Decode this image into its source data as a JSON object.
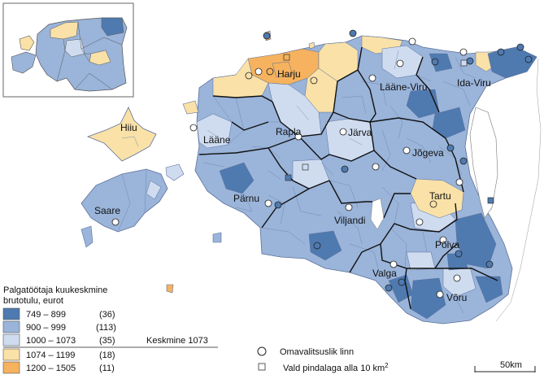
{
  "classes": [
    {
      "range": "749 – 899",
      "count": "(36)",
      "color": "#4f7ab0"
    },
    {
      "range": "900 – 999",
      "count": "(113)",
      "color": "#9ab4da"
    },
    {
      "range": "1000 – 1073",
      "count": "(35)",
      "color": "#cfdcf0"
    },
    {
      "range": "1074 – 1199",
      "count": "(18)",
      "color": "#f9e1a8"
    },
    {
      "range": "1200 – 1505",
      "count": "(11)",
      "color": "#f6b25e"
    }
  ],
  "legend": {
    "title_line1": "Palgatöötaja kuukeskmine",
    "title_line2": "brutotulu, eurot",
    "average_label": "Keskmine 1073"
  },
  "symbols": {
    "city": "Omavalitsuslik linn",
    "small_parish_prefix": "Vald pindalaga alla 10 km",
    "small_parish_sup": "2"
  },
  "scale_bar": "50km",
  "counties": [
    {
      "name": "Harju"
    },
    {
      "name": "Lääne-Viru"
    },
    {
      "name": "Ida-Viru"
    },
    {
      "name": "Hiiu"
    },
    {
      "name": "Lääne"
    },
    {
      "name": "Rapla"
    },
    {
      "name": "Järva"
    },
    {
      "name": "Jõgeva"
    },
    {
      "name": "Tartu"
    },
    {
      "name": "Pärnu"
    },
    {
      "name": "Saare"
    },
    {
      "name": "Viljandi"
    },
    {
      "name": "Põlva"
    },
    {
      "name": "Valga"
    },
    {
      "name": "Võru"
    }
  ]
}
